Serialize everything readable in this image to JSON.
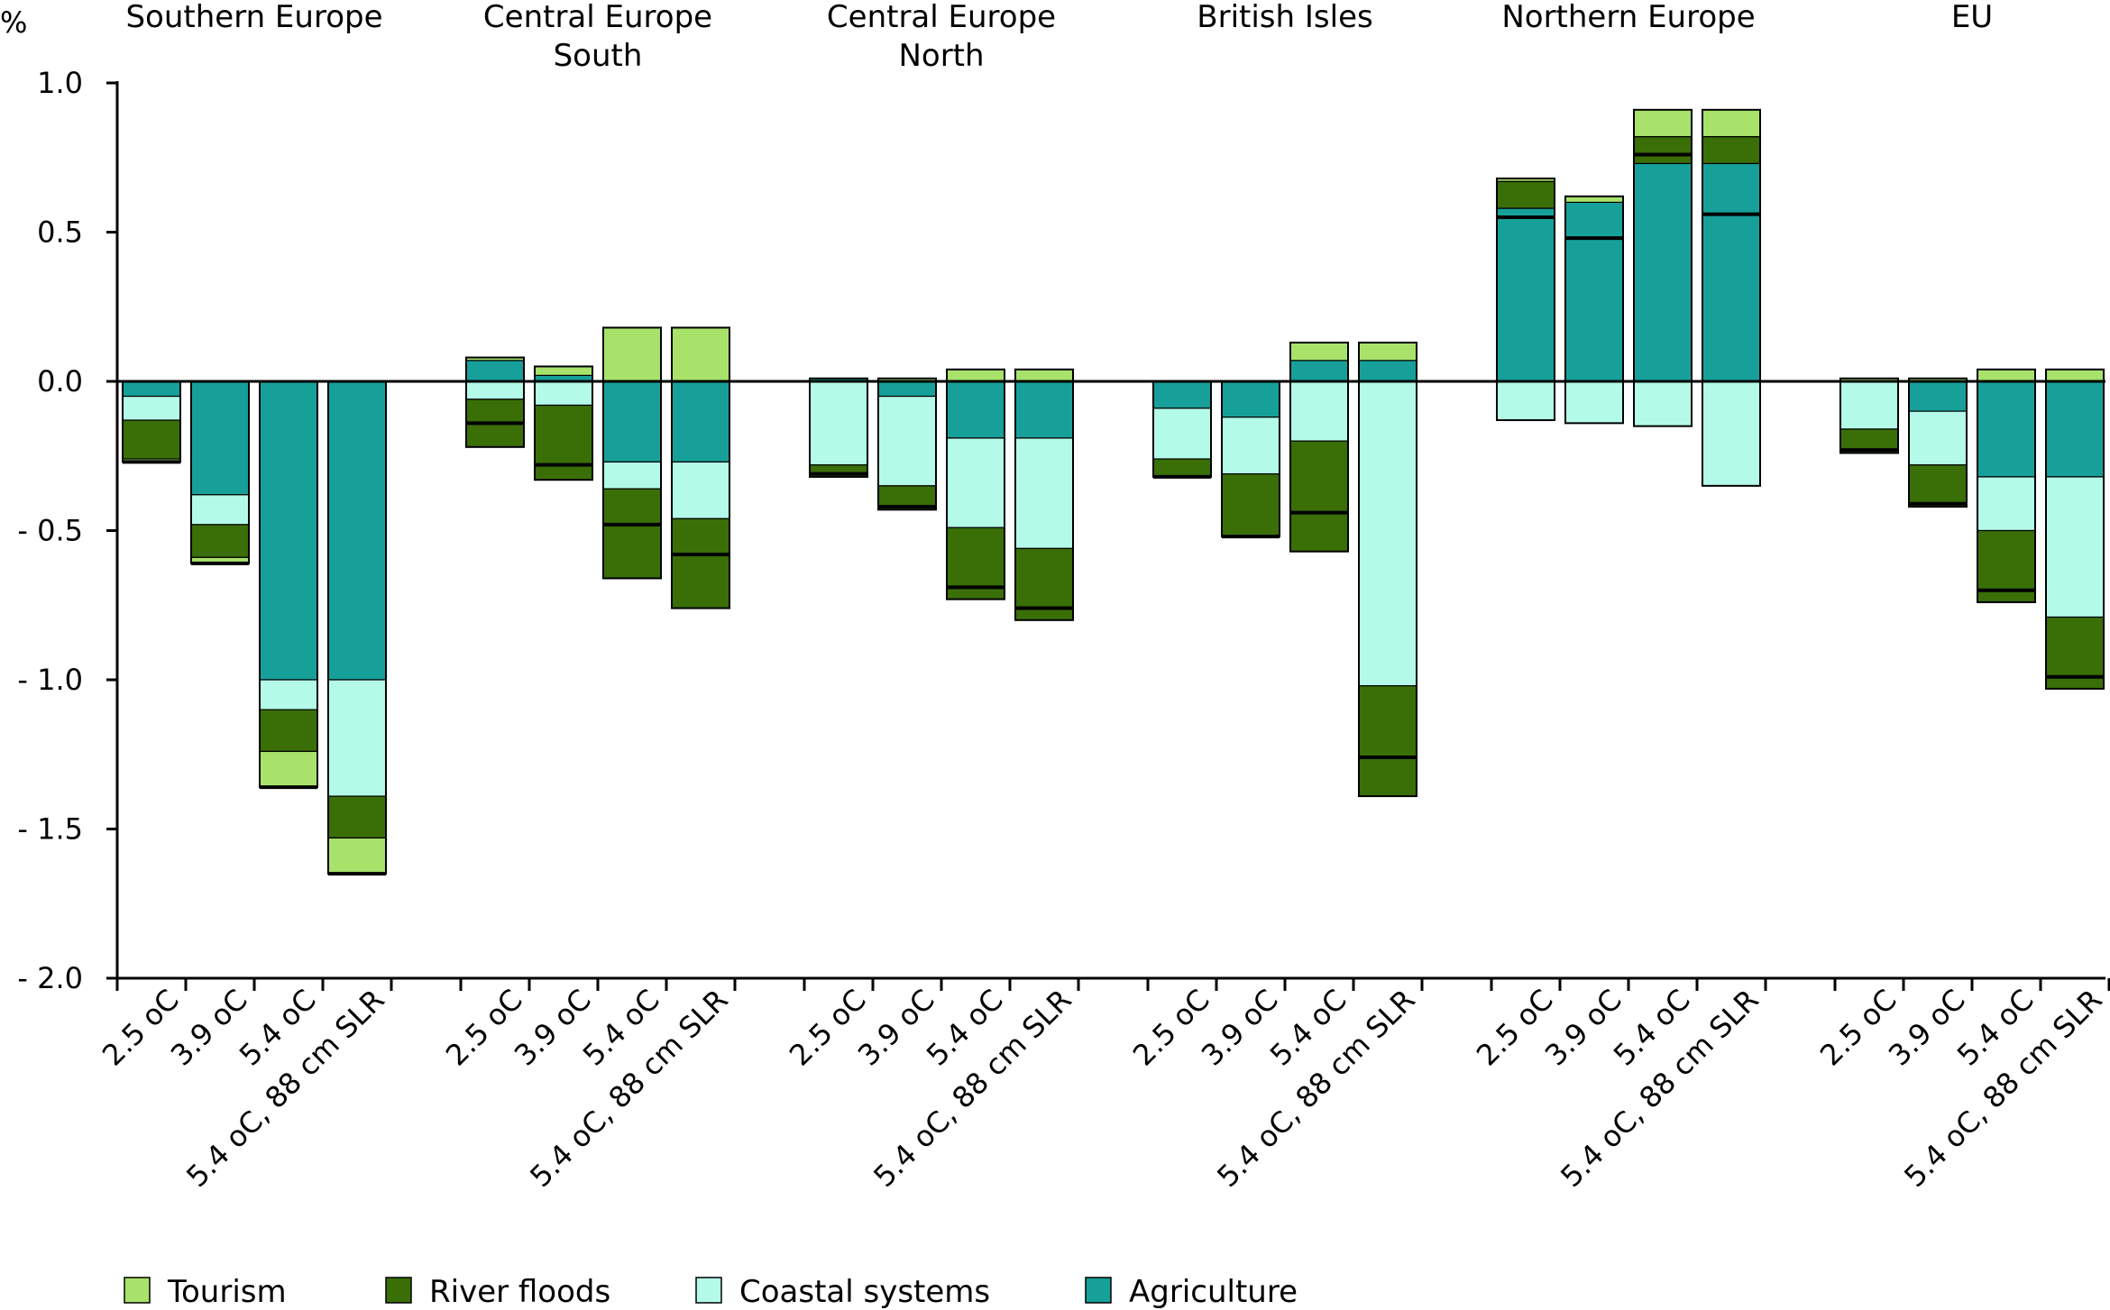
{
  "chart_data": {
    "type": "bar",
    "stacked": true,
    "ylabel": "%",
    "ylim": [
      -2.0,
      1.0
    ],
    "yticks": [
      1.0,
      0.5,
      0.0,
      -0.5,
      -1.0,
      -1.5,
      -2.0
    ],
    "ytick_labels": [
      "1.0",
      "0.5",
      "0.0",
      "- 0.5",
      "- 1.0",
      "- 1.5",
      "- 2.0"
    ],
    "grid": false,
    "legend_position": "bottom",
    "colors": {
      "Tourism": "#a8e26b",
      "River floods": "#3a6e07",
      "Coastal systems": "#b3fbe8",
      "Agriculture": "#17a099"
    },
    "stack_order_negative": [
      "Agriculture",
      "Coastal systems",
      "River floods",
      "Tourism"
    ],
    "stack_order_positive": [
      "Agriculture",
      "River floods",
      "Coastal systems",
      "Tourism"
    ],
    "legend": [
      "Tourism",
      "River floods",
      "Coastal systems",
      "Agriculture"
    ],
    "groups": [
      {
        "name": "Southern Europe",
        "label_lines": [
          "Southern Europe"
        ],
        "bars": [
          {
            "category": "2.5 oC",
            "Agriculture": -0.05,
            "Coastal systems": -0.08,
            "River floods": -0.13,
            "Tourism": -0.01,
            "net": -0.27
          },
          {
            "category": "3.9 oC",
            "Agriculture": -0.38,
            "Coastal systems": -0.1,
            "River floods": -0.11,
            "Tourism": -0.02,
            "net": -0.61
          },
          {
            "category": "5.4 oC",
            "Agriculture": -1.0,
            "Coastal systems": -0.1,
            "River floods": -0.14,
            "Tourism": -0.12,
            "net": -1.36
          },
          {
            "category": "5.4 oC, 88 cm SLR",
            "Agriculture": -1.0,
            "Coastal systems": -0.39,
            "River floods": -0.14,
            "Tourism": -0.12,
            "net": -1.65
          }
        ]
      },
      {
        "name": "Central Europe South",
        "label_lines": [
          "Central Europe",
          "South"
        ],
        "bars": [
          {
            "category": "2.5 oC",
            "Agriculture": 0.07,
            "Coastal systems": -0.06,
            "River floods": -0.16,
            "Tourism": 0.01,
            "net": -0.14
          },
          {
            "category": "3.9 oC",
            "Agriculture": 0.02,
            "Coastal systems": -0.08,
            "River floods": -0.25,
            "Tourism": 0.03,
            "net": -0.28
          },
          {
            "category": "5.4 oC",
            "Agriculture": -0.27,
            "Coastal systems": -0.09,
            "River floods": -0.3,
            "Tourism": 0.18,
            "net": -0.48
          },
          {
            "category": "5.4 oC, 88 cm SLR",
            "Agriculture": -0.27,
            "Coastal systems": -0.19,
            "River floods": -0.3,
            "Tourism": 0.18,
            "net": -0.58
          }
        ]
      },
      {
        "name": "Central Europe North",
        "label_lines": [
          "Central Europe",
          "North"
        ],
        "bars": [
          {
            "category": "2.5 oC",
            "Agriculture": 0.01,
            "Coastal systems": -0.28,
            "River floods": -0.04,
            "Tourism": 0.0,
            "net": -0.31
          },
          {
            "category": "3.9 oC",
            "Agriculture": -0.05,
            "Coastal systems": -0.3,
            "River floods": -0.08,
            "Tourism": 0.01,
            "net": -0.42
          },
          {
            "category": "5.4 oC",
            "Agriculture": -0.19,
            "Coastal systems": -0.3,
            "River floods": -0.24,
            "Tourism": 0.04,
            "net": -0.69
          },
          {
            "category": "5.4 oC, 88 cm SLR",
            "Agriculture": -0.19,
            "Coastal systems": -0.37,
            "River floods": -0.24,
            "Tourism": 0.04,
            "net": -0.76
          }
        ]
      },
      {
        "name": "British Isles",
        "label_lines": [
          "British Isles"
        ],
        "bars": [
          {
            "category": "2.5 oC",
            "Agriculture": -0.09,
            "Coastal systems": -0.17,
            "River floods": -0.06,
            "Tourism": 0.0,
            "net": -0.32
          },
          {
            "category": "3.9 oC",
            "Agriculture": -0.12,
            "Coastal systems": -0.19,
            "River floods": -0.21,
            "Tourism": 0.0,
            "net": -0.52
          },
          {
            "category": "5.4 oC",
            "Agriculture": 0.07,
            "Coastal systems": -0.2,
            "River floods": -0.37,
            "Tourism": 0.06,
            "net": -0.44
          },
          {
            "category": "5.4 oC, 88 cm SLR",
            "Agriculture": 0.07,
            "Coastal systems": -1.02,
            "River floods": -0.37,
            "Tourism": 0.06,
            "net": -1.26
          }
        ]
      },
      {
        "name": "Northern Europe",
        "label_lines": [
          "Northern Europe"
        ],
        "bars": [
          {
            "category": "2.5 oC",
            "Agriculture": 0.58,
            "Coastal systems": -0.13,
            "River floods": 0.09,
            "Tourism": 0.01,
            "net": 0.55
          },
          {
            "category": "3.9 oC",
            "Agriculture": 0.6,
            "Coastal systems": -0.14,
            "River floods": 0.0,
            "Tourism": 0.02,
            "net": 0.48
          },
          {
            "category": "5.4 oC",
            "Agriculture": 0.73,
            "Coastal systems": -0.15,
            "River floods": 0.09,
            "Tourism": 0.09,
            "net": 0.76
          },
          {
            "category": "5.4 oC, 88 cm SLR",
            "Agriculture": 0.73,
            "Coastal systems": -0.35,
            "River floods": 0.09,
            "Tourism": 0.09,
            "net": 0.56
          }
        ]
      },
      {
        "name": "EU",
        "label_lines": [
          "EU"
        ],
        "bars": [
          {
            "category": "2.5 oC",
            "Agriculture": 0.0,
            "Coastal systems": -0.16,
            "River floods": -0.08,
            "Tourism": 0.01,
            "net": -0.23
          },
          {
            "category": "3.9 oC",
            "Agriculture": -0.1,
            "Coastal systems": -0.18,
            "River floods": -0.14,
            "Tourism": 0.01,
            "net": -0.41
          },
          {
            "category": "5.4 oC",
            "Agriculture": -0.32,
            "Coastal systems": -0.18,
            "River floods": -0.24,
            "Tourism": 0.04,
            "net": -0.7
          },
          {
            "category": "5.4 oC, 88 cm SLR",
            "Agriculture": -0.32,
            "Coastal systems": -0.47,
            "River floods": -0.24,
            "Tourism": 0.04,
            "net": -0.99
          }
        ]
      }
    ]
  }
}
